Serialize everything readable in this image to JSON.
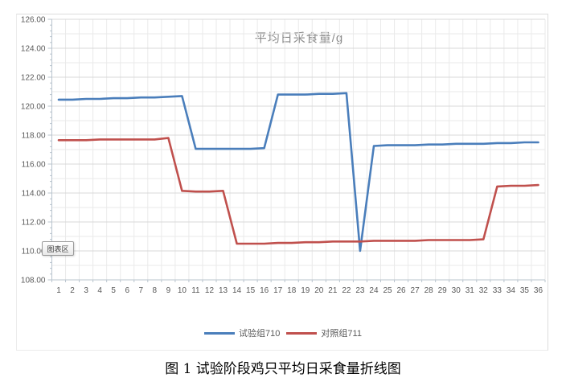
{
  "page": {
    "caption": "图 1 试验阶段鸡只平均日采食量折线图"
  },
  "tooltip": {
    "text": "图表区"
  },
  "chart_data": {
    "type": "line",
    "title": "平均日采食量/g",
    "categories": [
      "1",
      "2",
      "3",
      "4",
      "5",
      "6",
      "7",
      "8",
      "9",
      "10",
      "11",
      "12",
      "13",
      "14",
      "15",
      "16",
      "17",
      "18",
      "19",
      "20",
      "21",
      "22",
      "23",
      "24",
      "25",
      "26",
      "27",
      "28",
      "29",
      "30",
      "31",
      "32",
      "33",
      "34",
      "35",
      "36"
    ],
    "series": [
      {
        "name": "试验组710",
        "color": "#4a7ebb",
        "values": [
          120.45,
          120.45,
          120.5,
          120.5,
          120.55,
          120.55,
          120.6,
          120.6,
          120.65,
          120.7,
          117.05,
          117.05,
          117.05,
          117.05,
          117.05,
          117.1,
          120.8,
          120.8,
          120.8,
          120.85,
          120.85,
          120.9,
          110.0,
          117.25,
          117.3,
          117.3,
          117.3,
          117.35,
          117.35,
          117.4,
          117.4,
          117.4,
          117.45,
          117.45,
          117.5,
          117.5
        ]
      },
      {
        "name": "对照组711",
        "color": "#c0504d",
        "values": [
          117.65,
          117.65,
          117.65,
          117.7,
          117.7,
          117.7,
          117.7,
          117.7,
          117.8,
          114.15,
          114.1,
          114.1,
          114.15,
          110.5,
          110.5,
          110.5,
          110.55,
          110.55,
          110.6,
          110.6,
          110.65,
          110.65,
          110.65,
          110.7,
          110.7,
          110.7,
          110.7,
          110.75,
          110.75,
          110.75,
          110.75,
          110.8,
          114.45,
          114.5,
          114.5,
          114.55
        ]
      }
    ],
    "ylim": [
      108,
      126
    ],
    "ytick_step": 2,
    "ytick_labels": [
      "126.00",
      "124.00",
      "122.00",
      "120.00",
      "118.00",
      "116.00",
      "114.00",
      "112.00",
      "110.00",
      "108.00"
    ],
    "grid": true,
    "legend_position": "bottom"
  },
  "colors": {
    "grid_minor": "#eaeaea",
    "grid_major": "#d8d8d8",
    "axis": "#b9c4ce",
    "tick": "#b9c4ce",
    "axis_label": "#595959"
  }
}
